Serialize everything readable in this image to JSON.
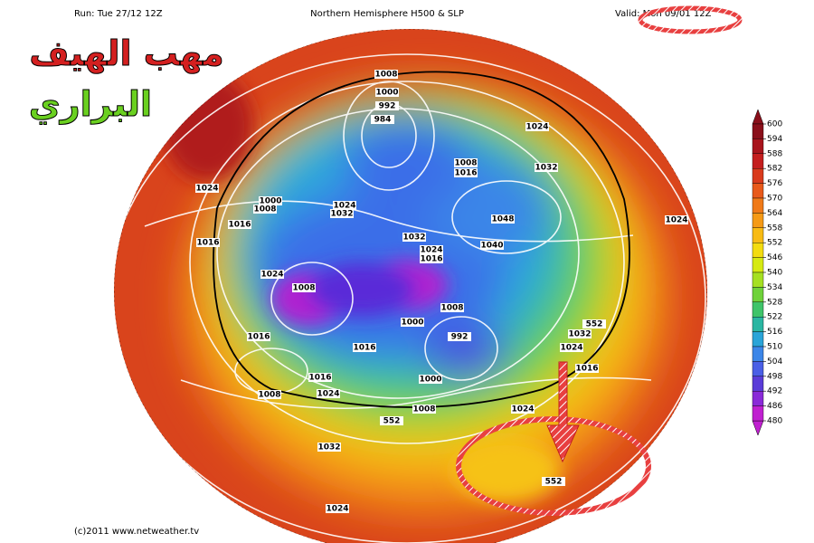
{
  "header": {
    "run": "Run: Tue 27/12 12Z",
    "title": "Northern Hemisphere H500 & SLP",
    "valid": "Valid: Mon 09/01 12Z"
  },
  "overlay": {
    "line1": "مهب الهيف",
    "line2": "البراري"
  },
  "colorbar": {
    "values": [
      600,
      594,
      588,
      582,
      576,
      570,
      564,
      558,
      552,
      546,
      540,
      534,
      528,
      522,
      516,
      510,
      504,
      498,
      492,
      486,
      480
    ],
    "colors": [
      "#8a0f1a",
      "#a8141c",
      "#c41e1e",
      "#d93a1c",
      "#e8591a",
      "#f07a18",
      "#f59a16",
      "#f8bb14",
      "#f3dc10",
      "#d6ea12",
      "#a5e022",
      "#6fd23a",
      "#3fc46a",
      "#2ab6a2",
      "#2aa4d8",
      "#3c86e8",
      "#4a5fe6",
      "#5a3cd8",
      "#8a2ad8",
      "#c020d0"
    ]
  },
  "isobar_labels": [
    "1008",
    "1000",
    "992",
    "984",
    "1024",
    "1008",
    "1016",
    "1032",
    "1024",
    "1000",
    "1008",
    "1024",
    "1032",
    "1016",
    "1048",
    "1024",
    "1016",
    "1032",
    "1024",
    "1016",
    "1040",
    "1024",
    "1008",
    "1000",
    "1008",
    "552",
    "1032",
    "1016",
    "1016",
    "992",
    "1024",
    "1016",
    "1016",
    "1000",
    "1008",
    "1024",
    "1008",
    "552",
    "1024",
    "1032",
    "552",
    "1024"
  ],
  "footer": "(c)2011 www.netweather.tv"
}
